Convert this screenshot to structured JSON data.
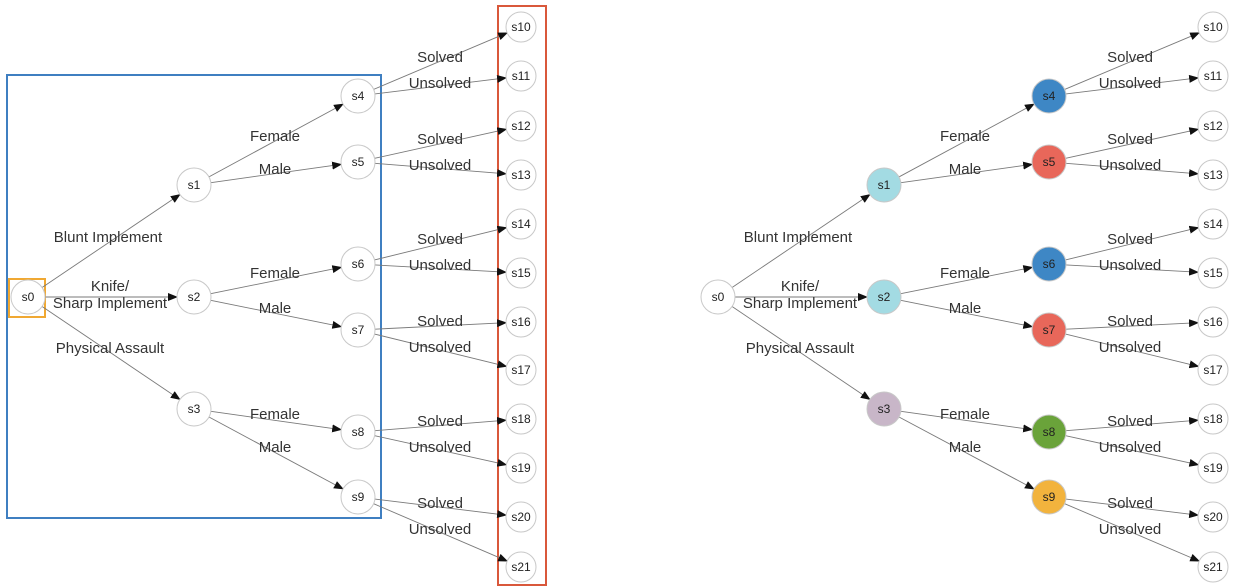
{
  "colors": {
    "frame_left": "#3f7fc1",
    "frame_right": "#d9583b",
    "frame_root": "#f0a832",
    "node_default": "#ffffff",
    "arrow": "#111111",
    "edge": "#7a7a7a"
  },
  "left_tree": {
    "nodes": [
      {
        "id": "s0",
        "label": "s0"
      },
      {
        "id": "s1",
        "label": "s1"
      },
      {
        "id": "s2",
        "label": "s2"
      },
      {
        "id": "s3",
        "label": "s3"
      },
      {
        "id": "s4",
        "label": "s4"
      },
      {
        "id": "s5",
        "label": "s5"
      },
      {
        "id": "s6",
        "label": "s6"
      },
      {
        "id": "s7",
        "label": "s7"
      },
      {
        "id": "s8",
        "label": "s8"
      },
      {
        "id": "s9",
        "label": "s9"
      },
      {
        "id": "s10",
        "label": "s10"
      },
      {
        "id": "s11",
        "label": "s11"
      },
      {
        "id": "s12",
        "label": "s12"
      },
      {
        "id": "s13",
        "label": "s13"
      },
      {
        "id": "s14",
        "label": "s14"
      },
      {
        "id": "s15",
        "label": "s15"
      },
      {
        "id": "s16",
        "label": "s16"
      },
      {
        "id": "s17",
        "label": "s17"
      },
      {
        "id": "s18",
        "label": "s18"
      },
      {
        "id": "s19",
        "label": "s19"
      },
      {
        "id": "s20",
        "label": "s20"
      },
      {
        "id": "s21",
        "label": "s21"
      }
    ]
  },
  "right_tree": {
    "nodes": [
      {
        "id": "s0",
        "label": "s0",
        "fill": "#ffffff"
      },
      {
        "id": "s1",
        "label": "s1",
        "fill": "#a3dbe3"
      },
      {
        "id": "s2",
        "label": "s2",
        "fill": "#a3dbe3"
      },
      {
        "id": "s3",
        "label": "s3",
        "fill": "#c8b6c8"
      },
      {
        "id": "s4",
        "label": "s4",
        "fill": "#3e87c5"
      },
      {
        "id": "s5",
        "label": "s5",
        "fill": "#e8675a"
      },
      {
        "id": "s6",
        "label": "s6",
        "fill": "#3e87c5"
      },
      {
        "id": "s7",
        "label": "s7",
        "fill": "#e8675a"
      },
      {
        "id": "s8",
        "label": "s8",
        "fill": "#6aa33a"
      },
      {
        "id": "s9",
        "label": "s9",
        "fill": "#f2b33d"
      },
      {
        "id": "s10",
        "label": "s10",
        "fill": "#ffffff"
      },
      {
        "id": "s11",
        "label": "s11",
        "fill": "#ffffff"
      },
      {
        "id": "s12",
        "label": "s12",
        "fill": "#ffffff"
      },
      {
        "id": "s13",
        "label": "s13",
        "fill": "#ffffff"
      },
      {
        "id": "s14",
        "label": "s14",
        "fill": "#ffffff"
      },
      {
        "id": "s15",
        "label": "s15",
        "fill": "#ffffff"
      },
      {
        "id": "s16",
        "label": "s16",
        "fill": "#ffffff"
      },
      {
        "id": "s17",
        "label": "s17",
        "fill": "#ffffff"
      },
      {
        "id": "s18",
        "label": "s18",
        "fill": "#ffffff"
      },
      {
        "id": "s19",
        "label": "s19",
        "fill": "#ffffff"
      },
      {
        "id": "s20",
        "label": "s20",
        "fill": "#ffffff"
      },
      {
        "id": "s21",
        "label": "s21",
        "fill": "#ffffff"
      }
    ]
  },
  "edges": [
    {
      "from": "s0",
      "to": "s1",
      "label": "Blunt Implement"
    },
    {
      "from": "s0",
      "to": "s2",
      "label": "Knife/\nSharp Implement"
    },
    {
      "from": "s0",
      "to": "s3",
      "label": "Physical Assault"
    },
    {
      "from": "s1",
      "to": "s4",
      "label": "Female"
    },
    {
      "from": "s1",
      "to": "s5",
      "label": "Male"
    },
    {
      "from": "s2",
      "to": "s6",
      "label": "Female"
    },
    {
      "from": "s2",
      "to": "s7",
      "label": "Male"
    },
    {
      "from": "s3",
      "to": "s8",
      "label": "Female"
    },
    {
      "from": "s3",
      "to": "s9",
      "label": "Male"
    },
    {
      "from": "s4",
      "to": "s10",
      "label": "Solved"
    },
    {
      "from": "s4",
      "to": "s11",
      "label": "Unsolved"
    },
    {
      "from": "s5",
      "to": "s12",
      "label": "Solved"
    },
    {
      "from": "s5",
      "to": "s13",
      "label": "Unsolved"
    },
    {
      "from": "s6",
      "to": "s14",
      "label": "Solved"
    },
    {
      "from": "s6",
      "to": "s15",
      "label": "Unsolved"
    },
    {
      "from": "s7",
      "to": "s16",
      "label": "Solved"
    },
    {
      "from": "s7",
      "to": "s17",
      "label": "Unsolved"
    },
    {
      "from": "s8",
      "to": "s18",
      "label": "Solved"
    },
    {
      "from": "s8",
      "to": "s19",
      "label": "Unsolved"
    },
    {
      "from": "s9",
      "to": "s20",
      "label": "Solved"
    },
    {
      "from": "s9",
      "to": "s21",
      "label": "Unsolved"
    }
  ]
}
